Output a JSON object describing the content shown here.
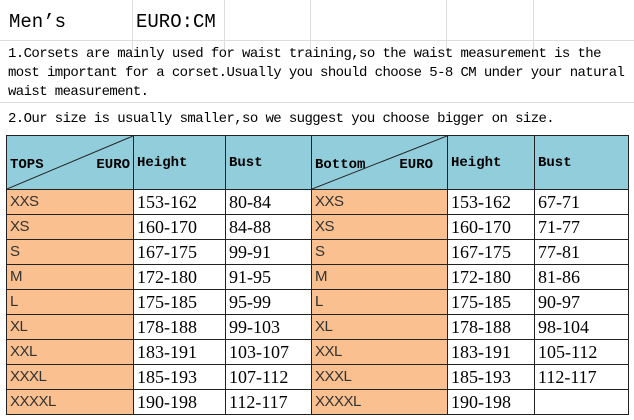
{
  "title": {
    "left": "Men’s",
    "right": "EURO:CM"
  },
  "notes": [
    "1.Corsets are mainly used for waist training,so the waist measurement is the most important for a corset.Usually you should choose 5-8 CM under your natural waist measurement.",
    "2.Our size is usually smaller,so we suggest you choose bigger on size."
  ],
  "colors": {
    "header": "#92cddc",
    "size_cell": "#fac090"
  },
  "header": {
    "tops": "TOPS",
    "euro1": "EURO",
    "height1": "Height",
    "bust1": "Bust",
    "bottom": "Bottom",
    "euro2": "EURO",
    "height2": "Height",
    "bust2": "Bust"
  },
  "rows": [
    {
      "size": "XXS",
      "t_height": "153-162",
      "t_bust": "80-84",
      "b_size": "XXS",
      "b_height": "153-162",
      "b_bust": "67-71"
    },
    {
      "size": "XS",
      "t_height": "160-170",
      "t_bust": "84-88",
      "b_size": "XS",
      "b_height": "160-170",
      "b_bust": "71-77"
    },
    {
      "size": "S",
      "t_height": "167-175",
      "t_bust": "99-91",
      "b_size": "S",
      "b_height": "167-175",
      "b_bust": "77-81"
    },
    {
      "size": "M",
      "t_height": "172-180",
      "t_bust": "91-95",
      "b_size": "M",
      "b_height": "172-180",
      "b_bust": "81-86"
    },
    {
      "size": "L",
      "t_height": "175-185",
      "t_bust": "95-99",
      "b_size": "L",
      "b_height": "175-185",
      "b_bust": "90-97"
    },
    {
      "size": "XL",
      "t_height": "178-188",
      "t_bust": "99-103",
      "b_size": "XL",
      "b_height": "178-188",
      "b_bust": "98-104"
    },
    {
      "size": "XXL",
      "t_height": "183-191",
      "t_bust": "103-107",
      "b_size": "XXL",
      "b_height": "183-191",
      "b_bust": "105-112"
    },
    {
      "size": "XXXL",
      "t_height": "185-193",
      "t_bust": "107-112",
      "b_size": "XXXL",
      "b_height": "185-193",
      "b_bust": "112-117"
    },
    {
      "size": "XXXXL",
      "t_height": "190-198",
      "t_bust": "112-117",
      "b_size": "XXXXL",
      "b_height": "190-198",
      "b_bust": ""
    }
  ]
}
